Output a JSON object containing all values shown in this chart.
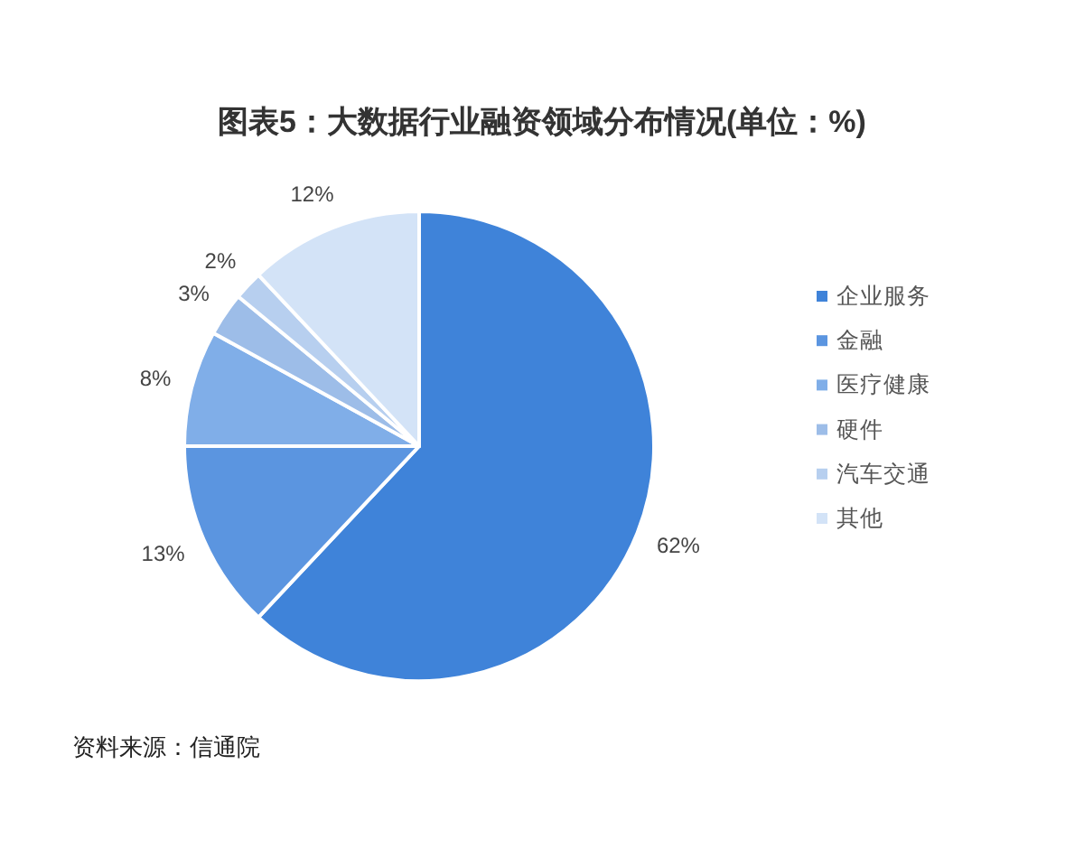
{
  "chart_data": {
    "type": "pie",
    "title": "图表5：大数据行业融资领域分布情况(单位：%)",
    "categories": [
      "企业服务",
      "金融",
      "医疗健康",
      "硬件",
      "汽车交通",
      "其他"
    ],
    "values": [
      62,
      13,
      8,
      3,
      2,
      12
    ],
    "colors": [
      "#3f83d9",
      "#5b95e0",
      "#80aee8",
      "#9dbde8",
      "#b7cfef",
      "#d3e3f7"
    ],
    "value_labels": [
      "62%",
      "13%",
      "8%",
      "3%",
      "2%",
      "12%"
    ],
    "legend": "right",
    "annotations": [
      "资料来源：信通院"
    ]
  }
}
